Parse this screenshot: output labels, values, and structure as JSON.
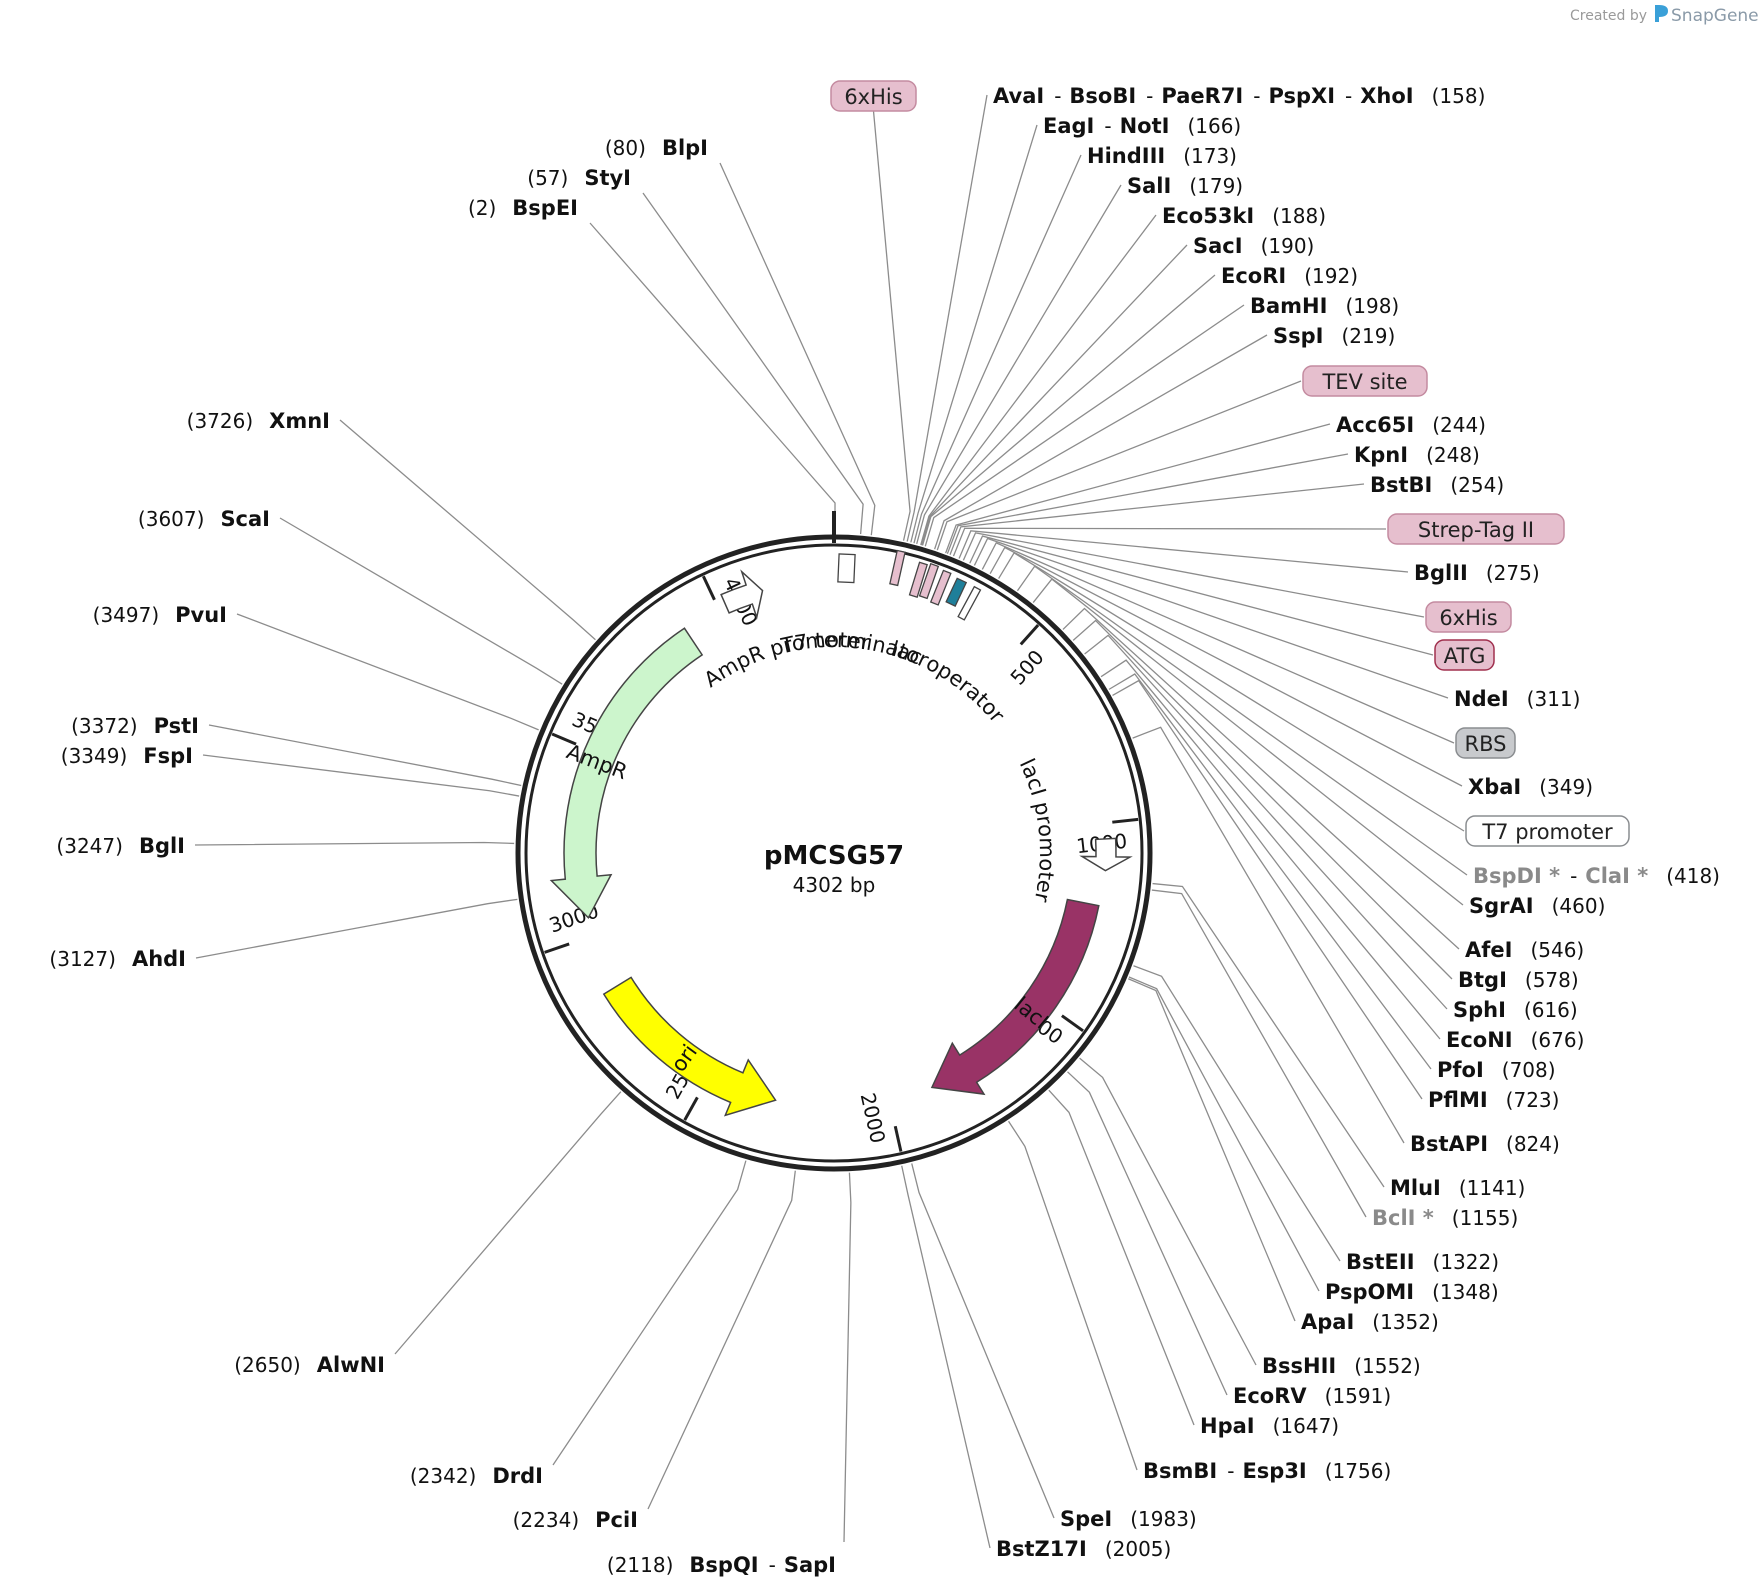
{
  "credit": {
    "prefix": "Created by",
    "brand": "SnapGene"
  },
  "plasmid": {
    "name": "pMCSG57",
    "size_label": "4302 bp",
    "length": 4302
  },
  "ticks": [
    {
      "label": "500",
      "pos": 500
    },
    {
      "label": "1000",
      "pos": 1000
    },
    {
      "label": "1500",
      "pos": 1500
    },
    {
      "label": "2000",
      "pos": 2000
    },
    {
      "label": "2500",
      "pos": 2500
    },
    {
      "label": "3000",
      "pos": 3000
    },
    {
      "label": "3500",
      "pos": 3500
    },
    {
      "label": "4000",
      "pos": 4000
    }
  ],
  "arrows": [
    {
      "name": "AmpR",
      "start": 3900,
      "end": 3050,
      "color": "#ccf5cc",
      "label": "AmpR"
    },
    {
      "name": "ori",
      "start": 2850,
      "end": 2310,
      "color": "#ffff00",
      "label": "ori"
    },
    {
      "name": "lacI",
      "start": 1210,
      "end": 1880,
      "color": "#993366",
      "label": "lacI"
    }
  ],
  "arc_labels": [
    {
      "text": "AmpR promoter",
      "center": 4140
    },
    {
      "text": "T7 terminator",
      "center": 70
    },
    {
      "text": "lac operator",
      "center": 400
    },
    {
      "text": "lacI promoter",
      "center": 1000
    }
  ],
  "box_features": [
    {
      "text": "6xHis",
      "color": "#e6bfce",
      "border": "#c48ba0"
    },
    {
      "text": "TEV site",
      "color": "#e6bfce",
      "border": "#c48ba0"
    },
    {
      "text": "Strep-Tag II",
      "color": "#e6bfce",
      "border": "#c48ba0"
    },
    {
      "text": "6xHis",
      "color": "#e6bfce",
      "border": "#c48ba0"
    },
    {
      "text": "ATG",
      "color": "#e6bfce",
      "border": "#a0304e"
    },
    {
      "text": "RBS",
      "color": "#c8cacd",
      "border": "#8a8d90"
    },
    {
      "text": "T7 promoter",
      "color": "#ffffff",
      "border": "#8a8d90"
    }
  ],
  "right_labels": [
    {
      "names": [
        "AvaI",
        "BsoBI",
        "PaeR7I",
        "PspXI",
        "XhoI"
      ],
      "pos": "(158)"
    },
    {
      "names": [
        "EagI",
        "NotI"
      ],
      "pos": "(166)"
    },
    {
      "names": [
        "HindIII"
      ],
      "pos": "(173)"
    },
    {
      "names": [
        "SalI"
      ],
      "pos": "(179)"
    },
    {
      "names": [
        "Eco53kI"
      ],
      "pos": "(188)"
    },
    {
      "names": [
        "SacI"
      ],
      "pos": "(190)"
    },
    {
      "names": [
        "EcoRI"
      ],
      "pos": "(192)"
    },
    {
      "names": [
        "BamHI"
      ],
      "pos": "(198)"
    },
    {
      "names": [
        "SspI"
      ],
      "pos": "(219)"
    },
    {
      "names": [
        "Acc65I"
      ],
      "pos": "(244)"
    },
    {
      "names": [
        "KpnI"
      ],
      "pos": "(248)"
    },
    {
      "names": [
        "BstBI"
      ],
      "pos": "(254)"
    },
    {
      "names": [
        "BglII"
      ],
      "pos": "(275)"
    },
    {
      "names": [
        "NdeI"
      ],
      "pos": "(311)"
    },
    {
      "names": [
        "XbaI"
      ],
      "pos": "(349)"
    },
    {
      "names": [
        "BspDI *",
        "ClaI *"
      ],
      "pos": "(418)",
      "gray": true
    },
    {
      "names": [
        "SgrAI"
      ],
      "pos": "(460)"
    },
    {
      "names": [
        "AfeI"
      ],
      "pos": "(546)"
    },
    {
      "names": [
        "BtgI"
      ],
      "pos": "(578)"
    },
    {
      "names": [
        "SphI"
      ],
      "pos": "(616)"
    },
    {
      "names": [
        "EcoNI"
      ],
      "pos": "(676)"
    },
    {
      "names": [
        "PfoI"
      ],
      "pos": "(708)"
    },
    {
      "names": [
        "PflMI"
      ],
      "pos": "(723)"
    },
    {
      "names": [
        "BstAPI"
      ],
      "pos": "(824)"
    },
    {
      "names": [
        "MluI"
      ],
      "pos": "(1141)"
    },
    {
      "names": [
        "BclI *"
      ],
      "pos": "(1155)",
      "gray": true
    },
    {
      "names": [
        "BstEII"
      ],
      "pos": "(1322)"
    },
    {
      "names": [
        "PspOMI"
      ],
      "pos": "(1348)"
    },
    {
      "names": [
        "ApaI"
      ],
      "pos": "(1352)"
    },
    {
      "names": [
        "BssHII"
      ],
      "pos": "(1552)"
    },
    {
      "names": [
        "EcoRV"
      ],
      "pos": "(1591)"
    },
    {
      "names": [
        "HpaI"
      ],
      "pos": "(1647)"
    },
    {
      "names": [
        "BsmBI",
        "Esp3I"
      ],
      "pos": "(1756)"
    },
    {
      "names": [
        "SpeI"
      ],
      "pos": "(1983)"
    },
    {
      "names": [
        "BstZ17I"
      ],
      "pos": "(2005)"
    }
  ],
  "left_labels": [
    {
      "names": [
        "BlpI"
      ],
      "pos": "(80)"
    },
    {
      "names": [
        "StyI"
      ],
      "pos": "(57)"
    },
    {
      "names": [
        "BspEI"
      ],
      "pos": "(2)"
    },
    {
      "names": [
        "XmnI"
      ],
      "pos": "(3726)"
    },
    {
      "names": [
        "ScaI"
      ],
      "pos": "(3607)"
    },
    {
      "names": [
        "PvuI"
      ],
      "pos": "(3497)"
    },
    {
      "names": [
        "PstI"
      ],
      "pos": "(3372)"
    },
    {
      "names": [
        "FspI"
      ],
      "pos": "(3349)"
    },
    {
      "names": [
        "BglI"
      ],
      "pos": "(3247)"
    },
    {
      "names": [
        "AhdI"
      ],
      "pos": "(3127)"
    },
    {
      "names": [
        "AlwNI"
      ],
      "pos": "(2650)"
    },
    {
      "names": [
        "DrdI"
      ],
      "pos": "(2342)"
    },
    {
      "names": [
        "PciI"
      ],
      "pos": "(2234)"
    },
    {
      "names": [
        "BspQI",
        "SapI"
      ],
      "pos": "(2118)"
    }
  ]
}
